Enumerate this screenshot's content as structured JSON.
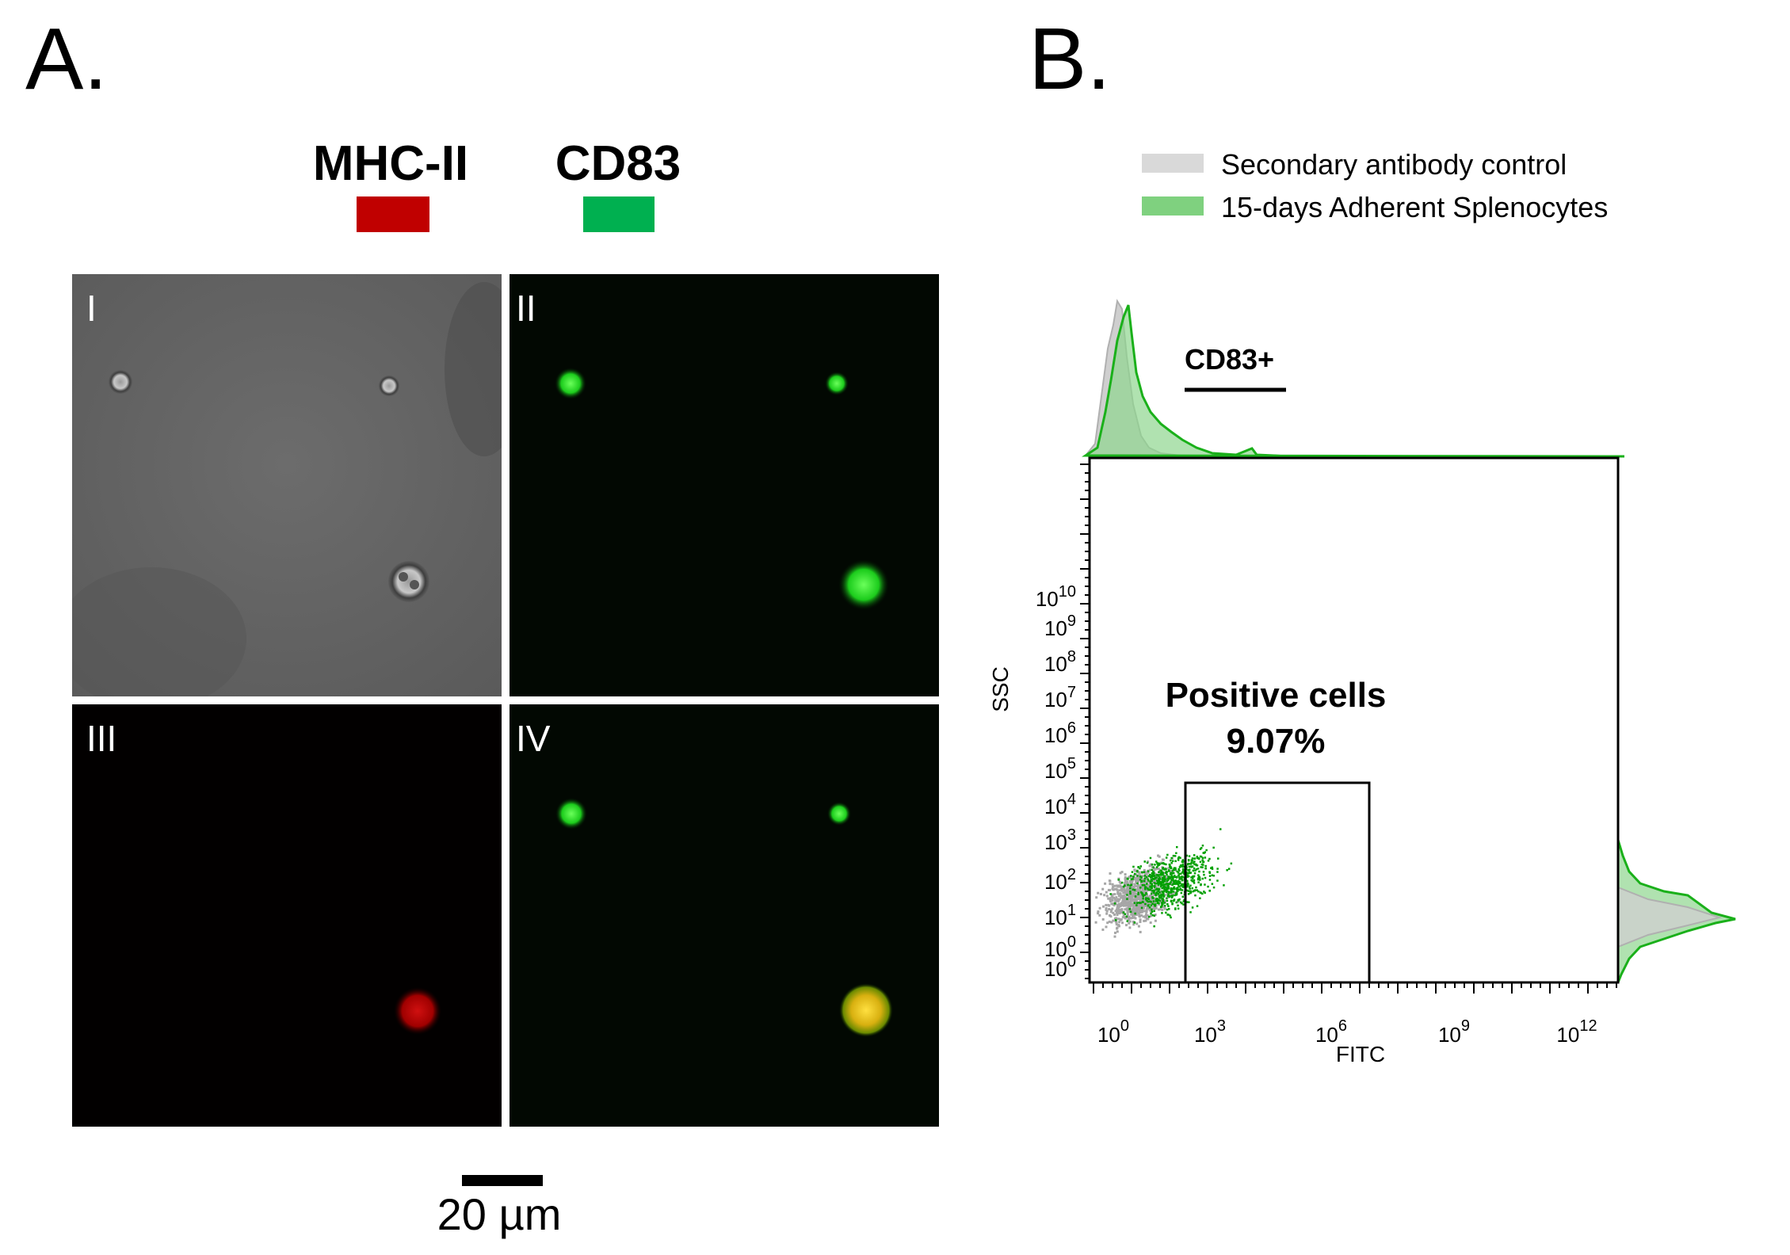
{
  "panel_a": {
    "letter": "A.",
    "channels": [
      {
        "label": "MHC-II",
        "color": "#c00000"
      },
      {
        "label": "CD83",
        "color": "#00b050"
      }
    ],
    "images": [
      {
        "label": "I",
        "content": "brightfield"
      },
      {
        "label": "II",
        "content": "green fluorescence"
      },
      {
        "label": "III",
        "content": "red fluorescence"
      },
      {
        "label": "IV",
        "content": "merged"
      }
    ],
    "scale_bar": "20 µm"
  },
  "panel_b": {
    "letter": "B.",
    "legend": [
      {
        "label": "Secondary antibody control",
        "color": "#d9d9d9"
      },
      {
        "label": "15-days Adherent Splenocytes",
        "color": "#7fd17f"
      }
    ],
    "histogram_gate_label": "CD83+",
    "gate_label_line1": "Positive cells",
    "gate_label_line2": "9.07%"
  },
  "chart_data": {
    "type": "scatter",
    "xlabel": "FITC",
    "ylabel": "SSC",
    "x_scale": "log",
    "y_scale": "log",
    "x_ticks": [
      "10^0",
      "10^3",
      "10^6",
      "10^9",
      "10^12"
    ],
    "y_ticks": [
      "10^0",
      "10^0",
      "10^1",
      "10^2",
      "10^3",
      "10^4",
      "10^5",
      "10^6",
      "10^7",
      "10^8",
      "10^9",
      "10^10"
    ],
    "series": [
      {
        "name": "Secondary antibody control",
        "color": "#a6a6a6"
      },
      {
        "name": "15-days Adherent Splenocytes",
        "color": "#00a000"
      }
    ],
    "gate": {
      "label": "Positive cells",
      "percent": 9.07,
      "x_range": [
        0.55,
        1.35
      ],
      "y_range": [
        0.01,
        0.47
      ]
    },
    "histogram_gate": {
      "label": "CD83+"
    }
  }
}
